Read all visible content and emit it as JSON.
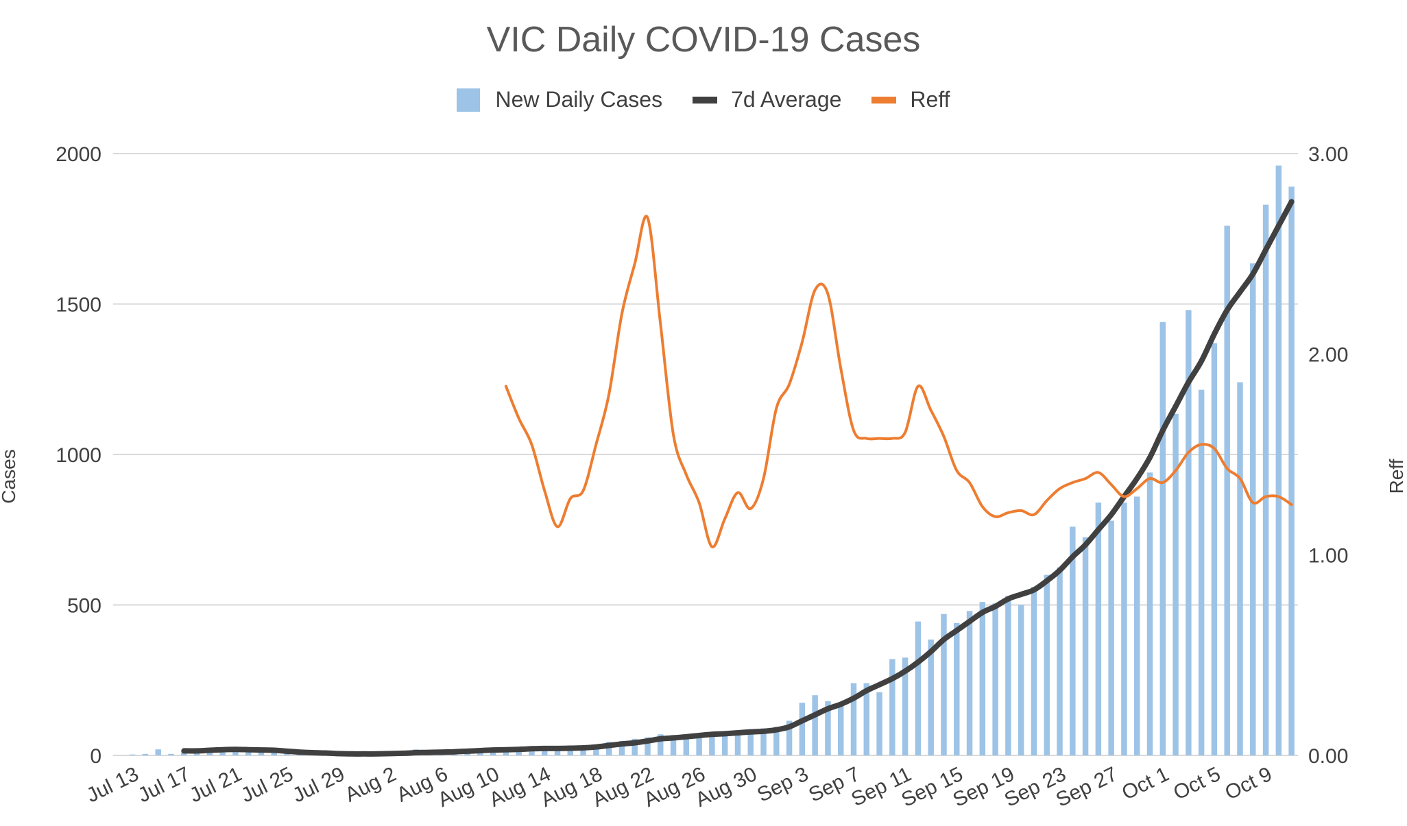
{
  "chart_data": {
    "type": "bar+line",
    "title": "VIC Daily COVID-19 Cases",
    "ylabel": "Cases",
    "y2label": "Reff",
    "ylim": [
      0,
      2000
    ],
    "y2lim": [
      0,
      3
    ],
    "yticks": [
      "0",
      "500",
      "1000",
      "1500",
      "2000"
    ],
    "y2ticks": [
      "0.00",
      "1.00",
      "2.00",
      "3.00"
    ],
    "legend_position": "top-center",
    "legend": [
      {
        "name": "New Daily Cases",
        "color": "#9DC3E6",
        "kind": "bar"
      },
      {
        "name": "7d Average",
        "color": "#404040",
        "kind": "line"
      },
      {
        "name": "Reff",
        "color": "#ED7D31",
        "kind": "line"
      }
    ],
    "x_tick_labels": [
      "Jul 13",
      "Jul 17",
      "Jul 21",
      "Jul 25",
      "Jul 29",
      "Aug 2",
      "Aug 6",
      "Aug 10",
      "Aug 14",
      "Aug 18",
      "Aug 22",
      "Aug 26",
      "Aug 30",
      "Sep 3",
      "Sep 7",
      "Sep 11",
      "Sep 15",
      "Sep 19",
      "Sep 23",
      "Sep 27",
      "Oct 1",
      "Oct 5",
      "Oct 9"
    ],
    "series": [
      {
        "name": "New Daily Cases",
        "values": [
          0,
          3,
          5,
          20,
          5,
          10,
          15,
          12,
          10,
          15,
          12,
          10,
          12,
          8,
          5,
          5,
          8,
          6,
          5,
          5,
          5,
          5,
          5,
          20,
          10,
          5,
          8,
          10,
          12,
          12,
          15,
          18,
          15,
          20,
          20,
          25,
          25,
          30,
          45,
          48,
          55,
          60,
          70,
          68,
          60,
          70,
          75,
          70,
          80,
          85,
          90,
          95,
          115,
          175,
          200,
          180,
          170,
          240,
          240,
          210,
          320,
          325,
          445,
          385,
          470,
          440,
          480,
          510,
          505,
          530,
          500,
          560,
          600,
          625,
          760,
          725,
          840,
          780,
          840,
          860,
          940,
          1440,
          1135,
          1480,
          1215,
          1370,
          1760,
          1240,
          1635,
          1830,
          1960,
          1890
        ]
      },
      {
        "name": "7d Average",
        "values": [
          null,
          null,
          null,
          null,
          null,
          15,
          15,
          17,
          19,
          20,
          19,
          18,
          17,
          14,
          11,
          9,
          8,
          6,
          5,
          5,
          5,
          6,
          7,
          9,
          10,
          11,
          12,
          14,
          16,
          18,
          19,
          20,
          22,
          23,
          23,
          24,
          25,
          28,
          33,
          38,
          42,
          48,
          55,
          58,
          62,
          66,
          70,
          72,
          75,
          78,
          80,
          85,
          95,
          115,
          135,
          155,
          170,
          190,
          215,
          235,
          255,
          280,
          310,
          345,
          385,
          415,
          445,
          475,
          495,
          520,
          535,
          550,
          580,
          615,
          660,
          700,
          750,
          800,
          860,
          920,
          990,
          1080,
          1160,
          1240,
          1310,
          1400,
          1480,
          1540,
          1600,
          1680,
          1760,
          1840
        ]
      },
      {
        "name": "Reff",
        "values": [
          null,
          null,
          null,
          null,
          null,
          null,
          null,
          null,
          null,
          null,
          null,
          null,
          null,
          null,
          null,
          null,
          null,
          null,
          null,
          null,
          null,
          null,
          null,
          null,
          null,
          null,
          null,
          null,
          null,
          null,
          1.84,
          1.68,
          1.55,
          1.32,
          1.14,
          1.28,
          1.32,
          1.55,
          1.8,
          2.2,
          2.45,
          2.68,
          2.15,
          1.6,
          1.4,
          1.26,
          1.04,
          1.18,
          1.31,
          1.23,
          1.38,
          1.73,
          1.85,
          2.06,
          2.32,
          2.3,
          1.93,
          1.62,
          1.58,
          1.58,
          1.58,
          1.61,
          1.84,
          1.72,
          1.59,
          1.42,
          1.36,
          1.24,
          1.19,
          1.21,
          1.22,
          1.2,
          1.27,
          1.33,
          1.36,
          1.38,
          1.41,
          1.35,
          1.29,
          1.33,
          1.38,
          1.36,
          1.42,
          1.51,
          1.55,
          1.53,
          1.43,
          1.38,
          1.26,
          1.29,
          1.29,
          1.25
        ]
      }
    ]
  }
}
